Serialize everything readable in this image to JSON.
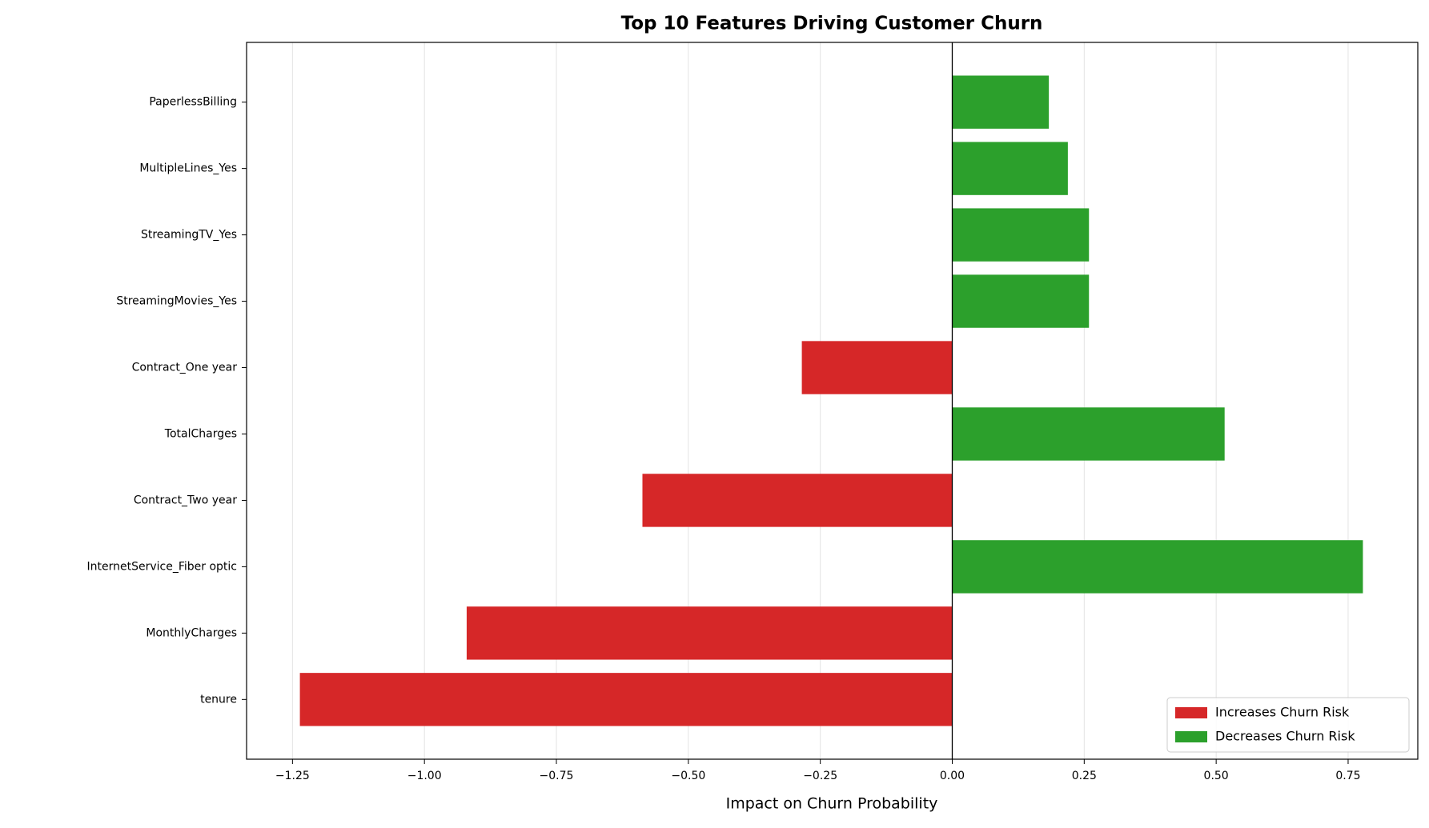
{
  "chart_data": {
    "type": "barh",
    "title": "Top 10 Features Driving Customer Churn",
    "x_label": "Impact on Churn Probability",
    "categories": [
      "tenure",
      "MonthlyCharges",
      "InternetService_Fiber optic",
      "Contract_Two year",
      "TotalCharges",
      "Contract_One year",
      "StreamingMovies_Yes",
      "StreamingTV_Yes",
      "MultipleLines_Yes",
      "PaperlessBilling"
    ],
    "values": [
      -1.236,
      -0.92,
      0.778,
      -0.587,
      0.516,
      -0.285,
      0.259,
      0.259,
      0.219,
      0.183
    ],
    "xlim": [
      -1.337,
      0.882
    ],
    "xticks": [
      {
        "value": -1.25,
        "label": "−1.25"
      },
      {
        "value": -1.0,
        "label": "−1.00"
      },
      {
        "value": -0.75,
        "label": "−0.75"
      },
      {
        "value": -0.5,
        "label": "−0.50"
      },
      {
        "value": -0.25,
        "label": "−0.25"
      },
      {
        "value": 0,
        "label": "0.00"
      },
      0.25,
      {
        "value": 0.5,
        "label": "0.50"
      },
      0.75
    ],
    "grid": true,
    "legend": {
      "position": "lower right",
      "entries": [
        {
          "name": "Increases Churn Risk",
          "color": "#d62728"
        },
        {
          "name": "Decreases Churn Risk",
          "color": "#2ca02c"
        }
      ]
    }
  }
}
